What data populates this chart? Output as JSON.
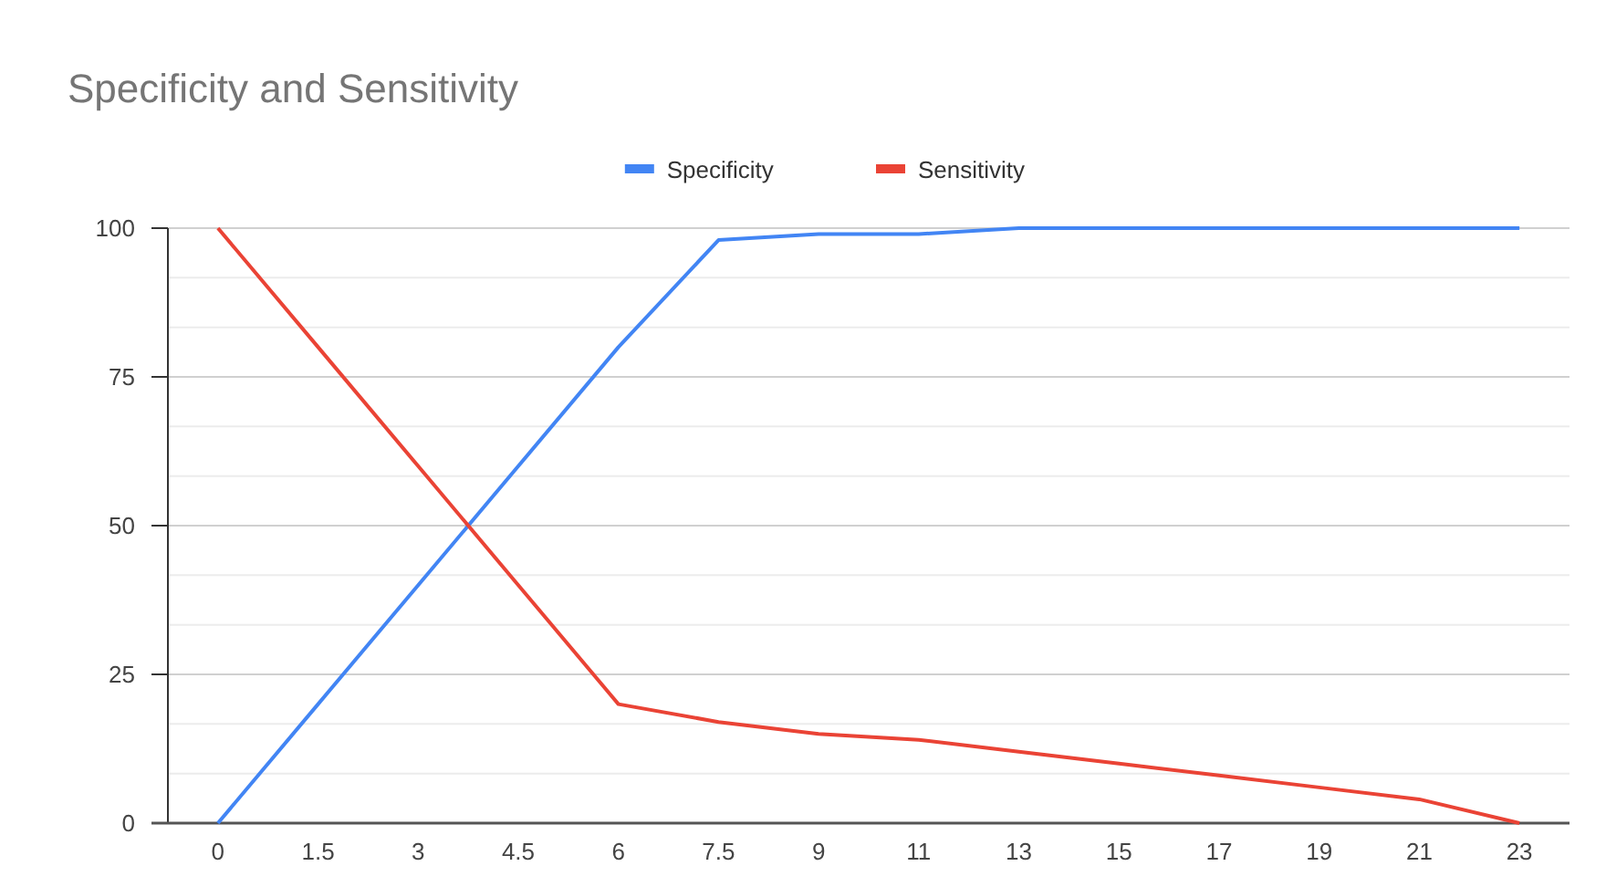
{
  "chart_data": {
    "type": "line",
    "title": "Specificity and Sensitivity",
    "categories": [
      "0",
      "1.5",
      "3",
      "4.5",
      "6",
      "7.5",
      "9",
      "11",
      "13",
      "15",
      "17",
      "19",
      "21",
      "23"
    ],
    "series": [
      {
        "name": "Specificity",
        "color": "#4285f4",
        "values": [
          0,
          20,
          40,
          60,
          80,
          98,
          99,
          99,
          100,
          100,
          100,
          100,
          100,
          100
        ]
      },
      {
        "name": "Sensitivity",
        "color": "#ea4335",
        "values": [
          100,
          80,
          60,
          40,
          20,
          17,
          15,
          14,
          12,
          10,
          8,
          6,
          4,
          0
        ]
      }
    ],
    "ylim": [
      0,
      100
    ],
    "yticks": [
      0,
      {
        "value": 8.33,
        "label": null
      },
      {
        "value": 16.67,
        "label": null
      },
      25,
      {
        "value": 33.33,
        "label": null
      },
      {
        "value": 41.67,
        "label": null
      },
      50,
      {
        "value": 58.33,
        "label": null
      },
      {
        "value": 66.67,
        "label": null
      },
      75,
      {
        "value": 83.33,
        "label": null
      },
      {
        "value": 91.67,
        "label": null
      },
      100
    ],
    "grid": true,
    "legend": "top",
    "marker": "none",
    "line_style": "solid"
  }
}
